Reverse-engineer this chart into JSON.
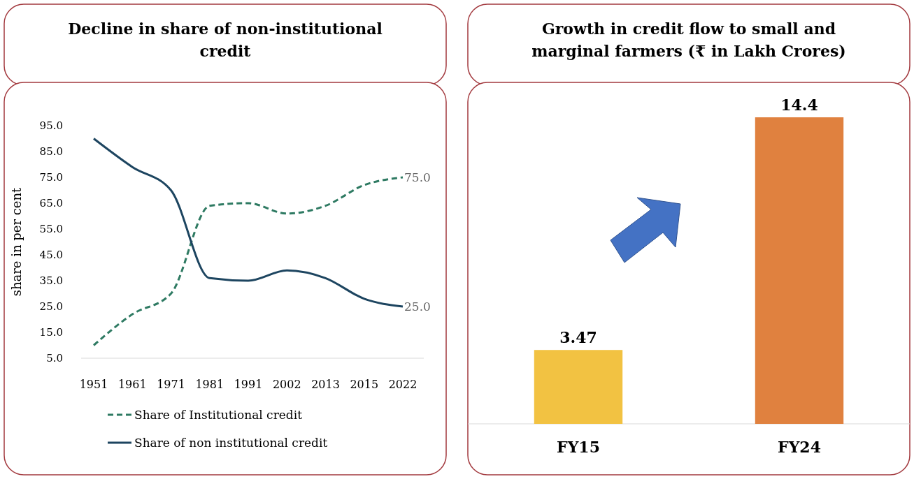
{
  "chart_data": [
    {
      "type": "line",
      "title": "Decline in share of non-institutional credit",
      "ylabel": "share in per cent",
      "categories": [
        "1951",
        "1961",
        "1971",
        "1981",
        "1991",
        "2002",
        "2013",
        "2015",
        "2022"
      ],
      "series": [
        {
          "name": "Share of Institutional credit",
          "color": "#2e7a62",
          "line_style": "dashed",
          "values": [
            10,
            22,
            30,
            64,
            65,
            61,
            64,
            72,
            75
          ],
          "value_labels": [
            null,
            null,
            null,
            null,
            null,
            null,
            null,
            null,
            "75.0"
          ]
        },
        {
          "name": "Share of non institutional credit",
          "color": "#1d4560",
          "line_style": "solid",
          "values": [
            90,
            79,
            70,
            36,
            35,
            39,
            36,
            28,
            25
          ],
          "value_labels": [
            null,
            null,
            null,
            null,
            null,
            null,
            null,
            null,
            "25.0"
          ]
        }
      ],
      "ylim": [
        5,
        95
      ],
      "yticks": [
        {
          "value": 5,
          "label": "5.0"
        },
        {
          "value": 15,
          "label": "15.0"
        },
        {
          "value": 25,
          "label": "25.0"
        },
        {
          "value": 35,
          "label": "35.0"
        },
        {
          "value": 45,
          "label": "45.0"
        },
        {
          "value": 55,
          "label": "55.0"
        },
        {
          "value": 65,
          "label": "65.0"
        },
        {
          "value": 75,
          "label": "75.0"
        },
        {
          "value": 85,
          "label": "85.0"
        },
        {
          "value": 95,
          "label": "95.0"
        }
      ],
      "grid": false,
      "legend": "bottom",
      "marker": "none"
    },
    {
      "type": "bar",
      "title": "Growth in credit flow to small and marginal farmers (₹ in Lakh Crores)",
      "categories": [
        "FY15",
        "FY24"
      ],
      "values": [
        3.47,
        14.4
      ],
      "colors": [
        "#f2c242",
        "#e0813f"
      ],
      "data_labels": true,
      "tick_labels": "x"
    }
  ]
}
